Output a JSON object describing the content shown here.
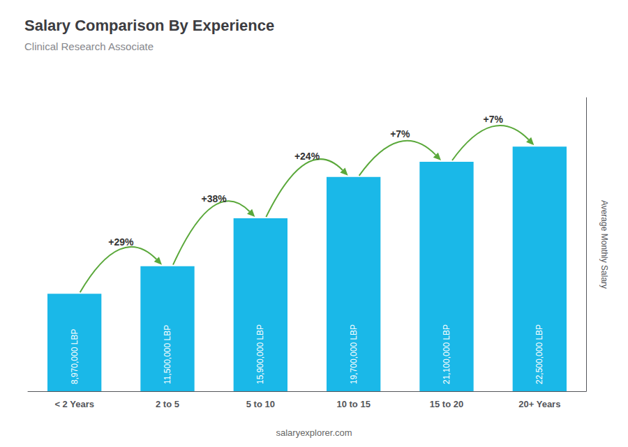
{
  "chart_data": {
    "type": "bar",
    "title": "Salary Comparison By Experience",
    "subtitle": "Clinical Research Associate",
    "ylabel": "Average Monthly Salary",
    "watermark": "salaryexplorer.com",
    "categories": [
      "< 2 Years",
      "2 to 5",
      "5 to 10",
      "10 to 15",
      "15 to 20",
      "20+ Years"
    ],
    "values": [
      8970000,
      11500000,
      15900000,
      19700000,
      21100000,
      22500000
    ],
    "value_labels": [
      "8,970,000 LBP",
      "11,500,000 LBP",
      "15,900,000 LBP",
      "19,700,000 LBP",
      "21,100,000 LBP",
      "22,500,000 LBP"
    ],
    "data_labels": true,
    "annotations": [
      "+29%",
      "+38%",
      "+24%",
      "+7%",
      "+7%"
    ],
    "color": "#1ab8e8",
    "ylim": [
      0,
      27000000
    ],
    "tick_labels": "x",
    "grid": false
  }
}
